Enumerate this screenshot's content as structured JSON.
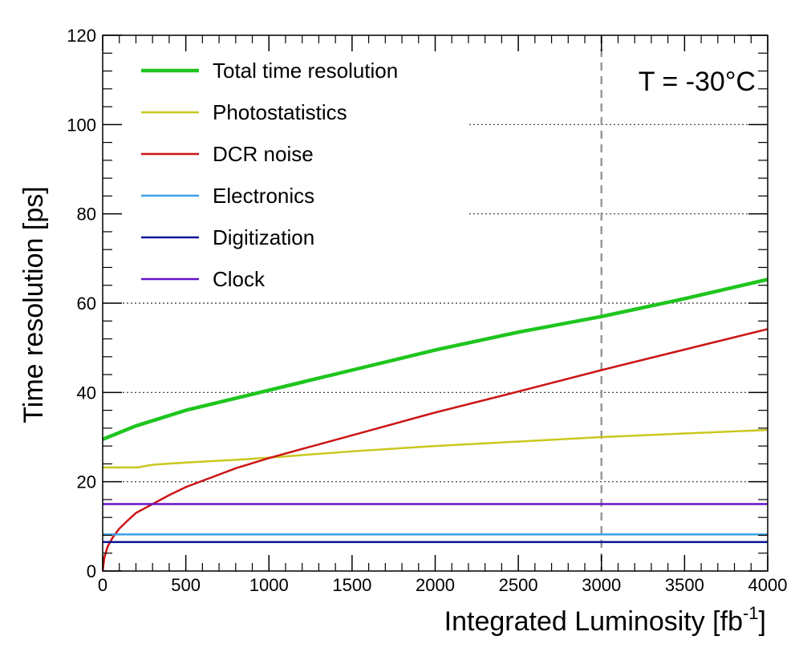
{
  "chart_data": {
    "type": "line",
    "xlabel": "Integrated Luminosity [fb",
    "xlabel_sup": "-1",
    "xlabel_close": "]",
    "ylabel": "Time resolution [ps]",
    "xlim": [
      0,
      4000
    ],
    "ylim": [
      0,
      120
    ],
    "x_ticks": [
      0,
      500,
      1000,
      1500,
      2000,
      2500,
      3000,
      3500,
      4000
    ],
    "y_ticks": [
      0,
      20,
      40,
      60,
      80,
      100,
      120
    ],
    "x_tick_labels": [
      "0",
      "500",
      "1000",
      "1500",
      "2000",
      "2500",
      "3000",
      "3500",
      "4000"
    ],
    "y_tick_labels": [
      "0",
      "20",
      "40",
      "60",
      "80",
      "100",
      "120"
    ],
    "grid_y": [
      20,
      40,
      60,
      80,
      100
    ],
    "vline_x": 3000,
    "annotation": "T = -30°C",
    "legend_position": "top-left",
    "series": [
      {
        "name": "Total time resolution",
        "color": "#1ec51e",
        "width": 4.5,
        "x": [
          0,
          200,
          500,
          1000,
          1500,
          2000,
          2500,
          3000,
          3500,
          4000
        ],
        "y": [
          29.5,
          32.5,
          36.0,
          40.5,
          45.0,
          49.5,
          53.5,
          57.0,
          61.0,
          65.3
        ]
      },
      {
        "name": "Photostatistics",
        "color": "#c8c81e",
        "width": 2.5,
        "x": [
          0,
          210,
          300,
          500,
          800,
          1000,
          1500,
          2000,
          2500,
          3000,
          3500,
          4000
        ],
        "y": [
          23.2,
          23.2,
          23.8,
          24.3,
          24.9,
          25.4,
          26.8,
          28.0,
          29.0,
          30.0,
          30.8,
          31.6
        ]
      },
      {
        "name": "DCR noise",
        "color": "#cc1414",
        "width": 2.5,
        "x": [
          0,
          10,
          30,
          60,
          100,
          150,
          200,
          250,
          300,
          400,
          500,
          800,
          1000,
          1500,
          2000,
          2500,
          3000,
          3500,
          4000
        ],
        "y": [
          0,
          3.0,
          5.5,
          7.5,
          9.5,
          11.3,
          13.0,
          14.0,
          15.0,
          17.0,
          18.8,
          23.0,
          25.3,
          30.4,
          35.5,
          40.2,
          45.0,
          49.6,
          54.2
        ]
      },
      {
        "name": "Electronics",
        "color": "#3ca0e6",
        "width": 2.5,
        "x": [
          0,
          4000
        ],
        "y": [
          8.2,
          8.2
        ]
      },
      {
        "name": "Digitization",
        "color": "#0a1496",
        "width": 2.5,
        "x": [
          0,
          4000
        ],
        "y": [
          6.5,
          6.5
        ]
      },
      {
        "name": "Clock",
        "color": "#6414c8",
        "width": 2.5,
        "x": [
          0,
          4000
        ],
        "y": [
          15.0,
          15.0
        ]
      }
    ]
  }
}
